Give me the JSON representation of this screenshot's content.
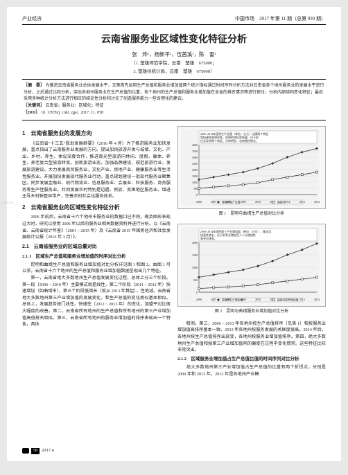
{
  "header": {
    "left": "产业经济",
    "right": "中国市场　2017 年第 11 期（总第 930 期）"
  },
  "title": "云南省服务业区域性变化特征分析",
  "authors": "张　烨¹，杨新平¹，伍茜溪¹，陈　雷²",
  "affil1": "（1. 楚雄师范学院，云南　楚雄　675000；",
  "affil2": "2. 楚雄州统计局，云南　楚雄　675000）",
  "abstract": {
    "label": "［摘　要］",
    "text": "为推进云南省服务业总体发展水平，文章首先运用生产总值和服务业增加值两个统计指标通过时间序列分析方法对云南省各个地州服务业的发展水平进行分析，之后通过比较分析，突出各地州服务业在生产总值的比重，各个地州的生产总值和服务业增加值在全省的排名情况等进行探讨，分析内部结构变化特征；最后采用多种统计分析方法进行相应的结论性分析和讨论了创造服务能力一些合理化的建议。"
  },
  "keywords": {
    "label": "［关键词］",
    "text": "云南省；服务业；区域化；特征"
  },
  "doi": {
    "label": "［DOI］",
    "text": "10. 13939/j. cnki. zgsc. 2017. 11. 058"
  },
  "left_col": {
    "h1_1": "1　云南省服务业的发展方向",
    "p1": "《云南省\"十三五\"规划发展纲要》（2016 年 4 月）为了推进服务业加快发展，重点指出了云南服务业发展的方向。提出加快旅游开发与城镇、文化、产业、乡村、养生、体设深度合作，推进观光型旅游向休闲、度假、康体、养生、养老复合型旅游转变。创新旅游业态，加强品牌建设，规范旅游行业，发展旅游建设。大力发展商贸服务业，文化产业、房地产业、健康服务业等生活性服务业。开展加快发展现代服务业行动，重点规划建设一批现代服务业聚集区。同步发展金融业、现代物流业、信息服务业、会展业、科技服务、商务服务等生产性服务业。共同发展农村特别是边疆、民族、贫困地区服务业。增进主导乡村帐整异带产，完善农村社会化服务体系。",
    "h1_2": "2　云南省服务业的区域性变化特征分析",
    "p2": "2006 年前后，云南省十六个地州市服务业的数据口已不同，做及图形表现过大时，研究以使用 2006 年以后的服务业相关数据资料并进行分析。以《云南省、云南省统计年鉴》（2001 ~ 2015 年）及《云南省 2015 年国民经济和社会发展统计公报（2016 年 3 月）》。",
    "h2_1": "2.1　云南省服务业的区域总量对比",
    "h3_1": "2.1.1　区域生产总值和服务业增加值的时序对比分析",
    "p3": "昆明和曲靖生产总值和服务业增加值对比分析详见图 1 和图 2。由图 1 可以求，云南省十六个地州的生产总值和服务业增加值数据呈现出几个特征。",
    "p4": "第一，云南省绝大多数地州生产总值发展变化过程，总体上分三个阶段。第一段（2006 ~ 2010 年）主要模式就是线性，第二个阶段（2011 ~ 2012 年）快速增加（如曲靖市），第三个阶段低增长（就从 2013 年算起），性地减。云南省地大多数地州第三产业增加值的发展变化，和生产总值的变化类似基本相似。总体上，发展趋势按门线性。快速性（2012 ~ 2013 年）的变化，加盟平对比很大幅度的改善。第二，云南省所有地州的生产总值和所有地州的第三产业增加值高低排名相似。第三，云南省所有地州的服务业增加值的排序表现出一个特色，具体",
    "watermark": "com.cn."
  },
  "right_col": {
    "chart1": {
      "type": "line",
      "legend_title": "2006~2014年昆明生产总值（单位：亿元）出满两个特征",
      "legend_sub": "是快速性和明显性。昆明的特征是快速、位于前",
      "legend_sub2": "位且及明两个特征，分特明显，也较稳性增长。",
      "xlabels": [
        "2006",
        "2007",
        "2008",
        "2009",
        "2010",
        "2011",
        "2012",
        "2013",
        "2014"
      ],
      "series": [
        {
          "name": "昆明市生产总值",
          "marker": "diamond",
          "values": [
            1200,
            1400,
            1600,
            1800,
            2100,
            2500,
            3000,
            3400,
            3700
          ],
          "color": "#333"
        },
        {
          "name": "曲靖市",
          "marker": "square",
          "values": [
            500,
            600,
            700,
            800,
            950,
            1200,
            1400,
            1600,
            1800
          ],
          "color": "#333"
        }
      ],
      "ylim": [
        0,
        4000
      ],
      "ytick_step": 500,
      "bg": "#f2f2f2",
      "grid": "#ccc",
      "caption": "图 1　昆明与曲靖生产总值对比分析"
    },
    "chart2": {
      "type": "line",
      "legend_title": "2006~2014年昆明第三产业增加值（单位：亿元），基本呈",
      "legend_sub": "快速性增长，位于前茅且增加百人十分增加性",
      "legend_sub2": "和充分增长。",
      "xlabels": [
        "2006",
        "2007",
        "2008",
        "2009",
        "2010",
        "2011",
        "2012",
        "2013",
        "2014"
      ],
      "series": [
        {
          "name": "昆明市三产增加值",
          "marker": "diamond",
          "values": [
            600,
            700,
            800,
            900,
            1050,
            1250,
            1500,
            1700,
            1950
          ],
          "color": "#333"
        },
        {
          "name": "曲靖市三产增加值",
          "marker": "square",
          "values": [
            150,
            180,
            210,
            250,
            300,
            380,
            450,
            520,
            600
          ],
          "color": "#333"
        }
      ],
      "ylim": [
        0,
        2000
      ],
      "ytick_step": 500,
      "bg": "#f2f2f2",
      "grid": "#ccc",
      "caption": "图 2　昆明与曲靖服务业增加值对比分析"
    },
    "p_after": "和例。第三，2006 ~ 2013 年各地州按生产总值排序（见表 1）和按服务业增加值高排序基本一致。2013 年各地州按服务发展的关联度很高。2014 年后，各地州按生产总值排序出现变，各地州按服务业增加值排序。第四，绝大多数地州生产总值和报第三产业增加值同的偏度在过程中变化惯常。这些特征比较非常突出。",
    "h3_2": "2.1.2　区域服务业增加值占生产总值比值的时间序列对比分析",
    "p5": "　　绝大多数地州第三产业增加值占生产总值的比重有两个折拐点，分别是 2009 年和 2013 年。2013 年是各地州产业模"
  },
  "footer": {
    "page": "58",
    "issue": "2017.4"
  }
}
